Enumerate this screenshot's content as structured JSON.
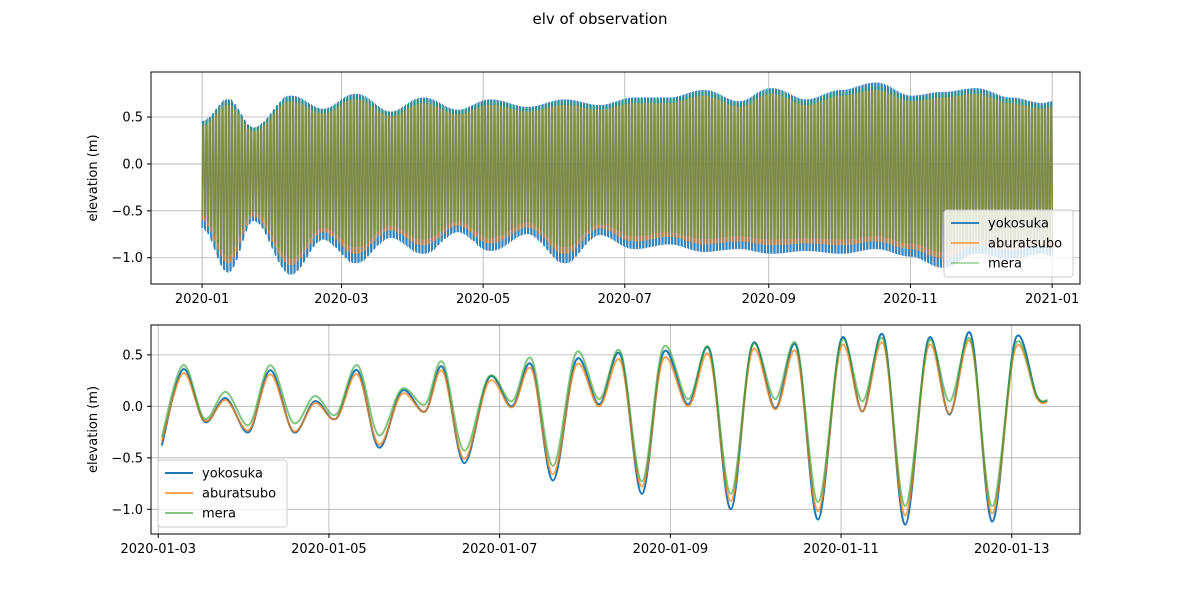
{
  "figure": {
    "suptitle": "elv of observation"
  },
  "colors": {
    "yokosuka": "#1f77b4",
    "aburatsubo": "#ff7f0e",
    "mera": "#2ca02c"
  },
  "chart_data": [
    {
      "type": "line",
      "title": "",
      "xlabel": "",
      "ylabel": "elevation (m)",
      "x_type": "date",
      "xlim": [
        "2019-12-10",
        "2021-01-13"
      ],
      "ylim": [
        -1.28,
        0.98
      ],
      "xticks": [
        "2020-01",
        "2020-03",
        "2020-05",
        "2020-07",
        "2020-09",
        "2020-11",
        "2021-01"
      ],
      "xtick_dates": [
        "2020-01-01",
        "2020-03-01",
        "2020-05-01",
        "2020-07-01",
        "2020-09-01",
        "2020-11-01",
        "2021-01-01"
      ],
      "yticks": [
        "−1.0",
        "−0.5",
        "0.0",
        "0.5"
      ],
      "ytick_values": [
        -1.0,
        -0.5,
        0.0,
        0.5
      ],
      "grid": true,
      "legend_position": "lower-right",
      "x_range": [
        "2020-01-01",
        "2021-01-01"
      ],
      "series": [
        {
          "name": "yokosuka",
          "alpha": 0.9,
          "envelope_dates": [
            "2020-01-01",
            "2020-01-12",
            "2020-01-23",
            "2020-02-08",
            "2020-02-22",
            "2020-03-07",
            "2020-03-22",
            "2020-04-05",
            "2020-04-20",
            "2020-05-04",
            "2020-05-20",
            "2020-06-05",
            "2020-06-20",
            "2020-07-05",
            "2020-07-20",
            "2020-08-04",
            "2020-08-19",
            "2020-09-02",
            "2020-09-17",
            "2020-10-02",
            "2020-10-17",
            "2020-11-01",
            "2020-11-15",
            "2020-11-29",
            "2020-12-14",
            "2020-12-28",
            "2021-01-01"
          ],
          "upper": [
            0.45,
            0.68,
            0.38,
            0.72,
            0.58,
            0.74,
            0.55,
            0.7,
            0.57,
            0.68,
            0.6,
            0.68,
            0.62,
            0.7,
            0.7,
            0.78,
            0.66,
            0.8,
            0.68,
            0.78,
            0.86,
            0.72,
            0.76,
            0.8,
            0.7,
            0.64,
            0.66
          ],
          "lower": [
            -0.68,
            -1.15,
            -0.6,
            -1.17,
            -0.8,
            -1.05,
            -0.78,
            -0.95,
            -0.72,
            -0.92,
            -0.74,
            -1.05,
            -0.75,
            -0.9,
            -0.85,
            -0.93,
            -0.9,
            -0.95,
            -0.92,
            -0.95,
            -0.9,
            -0.98,
            -1.1,
            -0.95,
            -1.0,
            -0.95,
            -0.98
          ]
        },
        {
          "name": "aburatsubo",
          "alpha": 0.6,
          "envelope_dates": [
            "2020-01-01",
            "2020-01-12",
            "2020-01-23",
            "2020-02-08",
            "2020-02-22",
            "2020-03-07",
            "2020-03-22",
            "2020-04-05",
            "2020-04-20",
            "2020-05-04",
            "2020-05-20",
            "2020-06-05",
            "2020-06-20",
            "2020-07-05",
            "2020-07-20",
            "2020-08-04",
            "2020-08-19",
            "2020-09-02",
            "2020-09-17",
            "2020-10-02",
            "2020-10-17",
            "2020-11-01",
            "2020-11-15",
            "2020-11-29",
            "2020-12-14",
            "2020-12-28",
            "2021-01-01"
          ],
          "upper": [
            0.4,
            0.62,
            0.34,
            0.66,
            0.53,
            0.68,
            0.5,
            0.64,
            0.52,
            0.62,
            0.55,
            0.62,
            0.57,
            0.64,
            0.64,
            0.72,
            0.6,
            0.74,
            0.62,
            0.72,
            0.78,
            0.66,
            0.7,
            0.74,
            0.64,
            0.58,
            0.6
          ],
          "lower": [
            -0.6,
            -1.05,
            -0.55,
            -1.07,
            -0.72,
            -0.95,
            -0.7,
            -0.86,
            -0.65,
            -0.84,
            -0.67,
            -0.95,
            -0.68,
            -0.82,
            -0.77,
            -0.85,
            -0.82,
            -0.86,
            -0.84,
            -0.86,
            -0.82,
            -0.9,
            -1.0,
            -0.86,
            -0.91,
            -0.86,
            -0.89
          ]
        },
        {
          "name": "mera",
          "alpha": 0.35,
          "envelope_dates": [
            "2020-01-01",
            "2020-01-12",
            "2020-01-23",
            "2020-02-08",
            "2020-02-22",
            "2020-03-07",
            "2020-03-22",
            "2020-04-05",
            "2020-04-20",
            "2020-05-04",
            "2020-05-20",
            "2020-06-05",
            "2020-06-20",
            "2020-07-05",
            "2020-07-20",
            "2020-08-04",
            "2020-08-19",
            "2020-09-02",
            "2020-09-17",
            "2020-10-02",
            "2020-10-17",
            "2020-11-01",
            "2020-11-15",
            "2020-11-29",
            "2020-12-14",
            "2020-12-28",
            "2021-01-01"
          ],
          "upper": [
            0.44,
            0.66,
            0.38,
            0.7,
            0.57,
            0.72,
            0.55,
            0.68,
            0.56,
            0.66,
            0.59,
            0.66,
            0.61,
            0.68,
            0.68,
            0.76,
            0.64,
            0.78,
            0.66,
            0.76,
            0.82,
            0.7,
            0.74,
            0.78,
            0.68,
            0.62,
            0.64
          ],
          "lower": [
            -0.55,
            -0.98,
            -0.5,
            -1.0,
            -0.67,
            -0.88,
            -0.65,
            -0.8,
            -0.6,
            -0.78,
            -0.62,
            -0.88,
            -0.63,
            -0.76,
            -0.72,
            -0.79,
            -0.76,
            -0.8,
            -0.78,
            -0.8,
            -0.76,
            -0.84,
            -0.93,
            -0.8,
            -0.85,
            -0.8,
            -0.83
          ]
        }
      ],
      "legend": [
        "yokosuka",
        "aburatsubo",
        "mera"
      ]
    },
    {
      "type": "line",
      "title": "",
      "xlabel": "",
      "ylabel": "elevation (m)",
      "x_type": "date",
      "xlim": [
        "2020-01-02T21:58",
        "2020-01-13T19:11"
      ],
      "ylim": [
        -1.24,
        0.79
      ],
      "xticks": [
        "2020-01-03",
        "2020-01-05",
        "2020-01-07",
        "2020-01-09",
        "2020-01-11",
        "2020-01-13"
      ],
      "xtick_dates": [
        "2020-01-03T00:00",
        "2020-01-05T00:00",
        "2020-01-07T00:00",
        "2020-01-09T00:00",
        "2020-01-11T00:00",
        "2020-01-13T00:00"
      ],
      "yticks": [
        "−1.0",
        "−0.5",
        "0.0",
        "0.5"
      ],
      "ytick_values": [
        -1.0,
        -0.5,
        0.0,
        0.5
      ],
      "grid": true,
      "legend_position": "lower-left",
      "series": [
        {
          "name": "yokosuka",
          "alpha": 1.0,
          "x": [
            "2020-01-03T01:00",
            "2020-01-03T07:00",
            "2020-01-03T13:00",
            "2020-01-03T19:00",
            "2020-01-04T01:30",
            "2020-01-04T07:30",
            "2020-01-04T14:00",
            "2020-01-04T20:00",
            "2020-01-05T02:00",
            "2020-01-05T08:00",
            "2020-01-05T14:00",
            "2020-01-05T20:30",
            "2020-01-06T03:00",
            "2020-01-06T08:00",
            "2020-01-06T14:00",
            "2020-01-06T21:00",
            "2020-01-07T03:30",
            "2020-01-07T09:00",
            "2020-01-07T15:00",
            "2020-01-07T21:30",
            "2020-01-08T04:00",
            "2020-01-08T10:00",
            "2020-01-08T16:00",
            "2020-01-08T22:00",
            "2020-01-09T05:00",
            "2020-01-09T11:00",
            "2020-01-09T17:00",
            "2020-01-09T23:00",
            "2020-01-10T05:30",
            "2020-01-10T11:30",
            "2020-01-10T17:30",
            "2020-01-11T00:00",
            "2020-01-11T06:00",
            "2020-01-11T12:00",
            "2020-01-11T18:00",
            "2020-01-12T00:30",
            "2020-01-12T06:30",
            "2020-01-12T12:30",
            "2020-01-12T18:30",
            "2020-01-13T01:00",
            "2020-01-13T07:00",
            "2020-01-13T10:00"
          ],
          "y": [
            -0.38,
            0.36,
            -0.15,
            0.08,
            -0.25,
            0.35,
            -0.25,
            0.05,
            -0.12,
            0.35,
            -0.4,
            0.15,
            -0.05,
            0.38,
            -0.55,
            0.28,
            0.0,
            0.4,
            -0.72,
            0.45,
            0.02,
            0.5,
            -0.85,
            0.52,
            0.02,
            0.55,
            -1.0,
            0.6,
            -0.02,
            0.58,
            -1.1,
            0.65,
            -0.05,
            0.68,
            -1.15,
            0.65,
            -0.08,
            0.7,
            -1.12,
            0.65,
            0.1,
            0.05
          ]
        },
        {
          "name": "aburatsubo",
          "alpha": 0.7,
          "x": [
            "2020-01-03T01:00",
            "2020-01-03T07:00",
            "2020-01-03T13:00",
            "2020-01-03T19:00",
            "2020-01-04T01:30",
            "2020-01-04T07:30",
            "2020-01-04T14:00",
            "2020-01-04T20:00",
            "2020-01-05T02:00",
            "2020-01-05T08:00",
            "2020-01-05T14:00",
            "2020-01-05T20:30",
            "2020-01-06T03:00",
            "2020-01-06T08:00",
            "2020-01-06T14:00",
            "2020-01-06T21:00",
            "2020-01-07T03:30",
            "2020-01-07T09:00",
            "2020-01-07T15:00",
            "2020-01-07T21:30",
            "2020-01-08T04:00",
            "2020-01-08T10:00",
            "2020-01-08T16:00",
            "2020-01-08T22:00",
            "2020-01-09T05:00",
            "2020-01-09T11:00",
            "2020-01-09T17:00",
            "2020-01-09T23:00",
            "2020-01-10T05:30",
            "2020-01-10T11:30",
            "2020-01-10T17:30",
            "2020-01-11T00:00",
            "2020-01-11T06:00",
            "2020-01-11T12:00",
            "2020-01-11T18:00",
            "2020-01-12T00:30",
            "2020-01-12T06:30",
            "2020-01-12T12:30",
            "2020-01-12T18:30",
            "2020-01-13T01:00",
            "2020-01-13T07:00",
            "2020-01-13T10:00"
          ],
          "y": [
            -0.34,
            0.32,
            -0.14,
            0.06,
            -0.23,
            0.31,
            -0.24,
            0.03,
            -0.12,
            0.31,
            -0.37,
            0.12,
            -0.05,
            0.34,
            -0.51,
            0.24,
            -0.01,
            0.36,
            -0.66,
            0.4,
            0.0,
            0.44,
            -0.78,
            0.46,
            0.0,
            0.49,
            -0.92,
            0.54,
            -0.03,
            0.52,
            -1.02,
            0.58,
            -0.05,
            0.6,
            -1.06,
            0.58,
            -0.07,
            0.62,
            -1.04,
            0.56,
            0.08,
            0.04
          ]
        },
        {
          "name": "mera",
          "alpha": 0.6,
          "x": [
            "2020-01-03T01:00",
            "2020-01-03T07:00",
            "2020-01-03T13:00",
            "2020-01-03T19:00",
            "2020-01-04T01:30",
            "2020-01-04T07:30",
            "2020-01-04T14:00",
            "2020-01-04T20:00",
            "2020-01-05T02:00",
            "2020-01-05T08:00",
            "2020-01-05T14:00",
            "2020-01-05T20:30",
            "2020-01-06T03:00",
            "2020-01-06T08:00",
            "2020-01-06T14:00",
            "2020-01-06T21:00",
            "2020-01-07T03:30",
            "2020-01-07T09:00",
            "2020-01-07T15:00",
            "2020-01-07T21:30",
            "2020-01-08T04:00",
            "2020-01-08T10:00",
            "2020-01-08T16:00",
            "2020-01-08T22:00",
            "2020-01-09T05:00",
            "2020-01-09T11:00",
            "2020-01-09T17:00",
            "2020-01-09T23:00",
            "2020-01-10T05:30",
            "2020-01-10T11:30",
            "2020-01-10T17:30",
            "2020-01-11T00:00",
            "2020-01-11T06:00",
            "2020-01-11T12:00",
            "2020-01-11T18:00",
            "2020-01-12T00:30",
            "2020-01-12T06:30",
            "2020-01-12T12:30",
            "2020-01-12T18:30",
            "2020-01-13T01:00",
            "2020-01-13T07:00",
            "2020-01-13T10:00"
          ],
          "y": [
            -0.3,
            0.4,
            -0.12,
            0.14,
            -0.18,
            0.4,
            -0.16,
            0.1,
            -0.08,
            0.4,
            -0.28,
            0.17,
            0.02,
            0.43,
            -0.43,
            0.29,
            0.05,
            0.46,
            -0.58,
            0.52,
            0.07,
            0.53,
            -0.73,
            0.57,
            0.07,
            0.56,
            -0.85,
            0.59,
            0.07,
            0.6,
            -0.93,
            0.63,
            0.05,
            0.64,
            -0.97,
            0.62,
            0.05,
            0.64,
            -0.97,
            0.6,
            0.1,
            0.06
          ]
        }
      ],
      "legend": [
        "yokosuka",
        "aburatsubo",
        "mera"
      ]
    }
  ]
}
